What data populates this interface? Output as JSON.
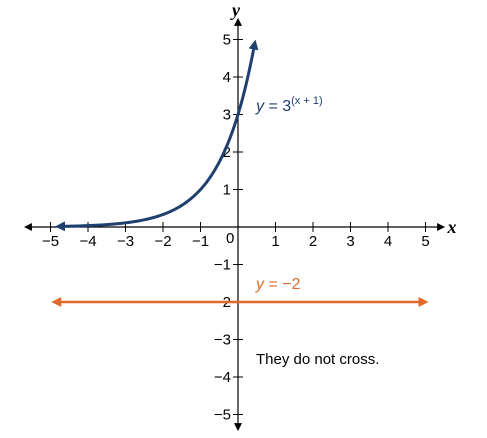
{
  "chart_data": {
    "type": "line",
    "xlabel": "x",
    "ylabel": "y",
    "xlim": [
      -5,
      5
    ],
    "ylim": [
      -5,
      5
    ],
    "x_ticks": [
      "−5",
      "−4",
      "−3",
      "−2",
      "−1",
      "1",
      "2",
      "3",
      "4",
      "5"
    ],
    "y_ticks": [
      "5",
      "4",
      "3",
      "2",
      "1",
      "−1",
      "−2",
      "−3",
      "−4",
      "−5"
    ],
    "origin_label": "0",
    "grid": false,
    "series": [
      {
        "name": "y = 3^(x + 1)",
        "label_parts": {
          "y": "y",
          "eq": " = 3",
          "exp": "(x + 1)"
        },
        "color": "#1f3f6e",
        "function": "exponential",
        "base": 3,
        "shift": 1,
        "x_range": [
          -4.8,
          0.45
        ],
        "arrows": "both"
      },
      {
        "name": "y = −2",
        "label_parts": {
          "y": "y",
          "eq": " = −2"
        },
        "color": "#e06a2b",
        "function": "constant",
        "value": -2,
        "x_range": [
          -4.9,
          5.0
        ],
        "arrows": "both"
      }
    ],
    "annotations": [
      {
        "text": "They do not cross."
      }
    ]
  }
}
